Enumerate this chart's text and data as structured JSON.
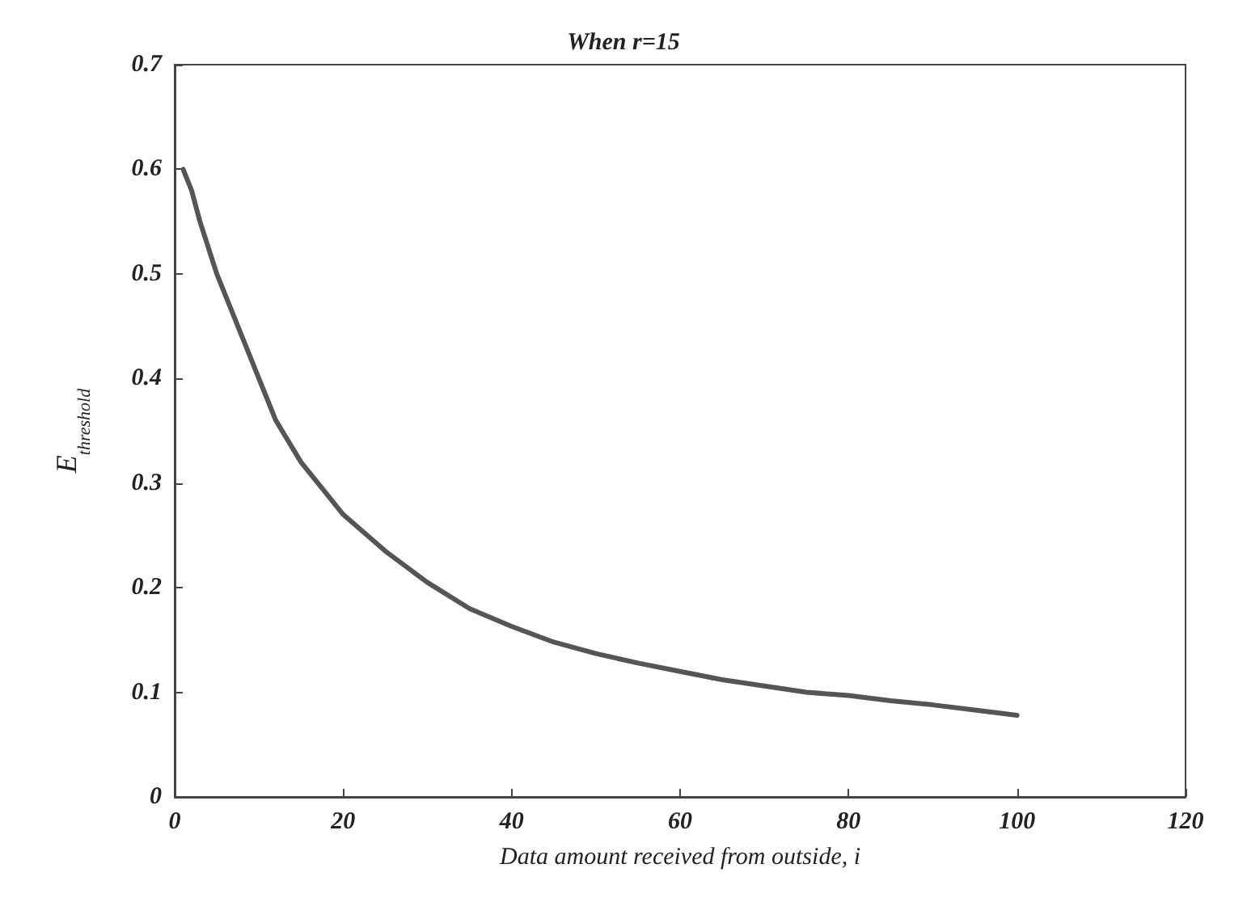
{
  "chart_data": {
    "type": "line",
    "title": "When r=15",
    "xlabel": "Data amount received from outside, i",
    "ylabel": "E$_{threshold}$",
    "x": [
      1,
      2,
      3,
      5,
      7,
      10,
      12,
      15,
      18,
      20,
      25,
      30,
      35,
      40,
      45,
      50,
      55,
      60,
      65,
      70,
      75,
      80,
      85,
      90,
      95,
      100
    ],
    "series": [
      {
        "color": "#555555",
        "values": [
          0.6,
          0.58,
          0.55,
          0.5,
          0.46,
          0.4,
          0.36,
          0.32,
          0.29,
          0.27,
          0.235,
          0.205,
          0.18,
          0.163,
          0.148,
          0.137,
          0.128,
          0.12,
          0.112,
          0.106,
          0.1,
          0.097,
          0.092,
          0.088,
          0.083,
          0.078
        ]
      }
    ],
    "xlim": [
      0,
      120
    ],
    "xticks": [
      0,
      20,
      40,
      60,
      80,
      100,
      120
    ],
    "ylim": [
      0,
      0.7
    ],
    "yticks": [
      0,
      0.1,
      0.2,
      0.3,
      0.4,
      0.5,
      0.6,
      0.7
    ],
    "grid": false,
    "marker": "none",
    "line_style": "solid"
  }
}
